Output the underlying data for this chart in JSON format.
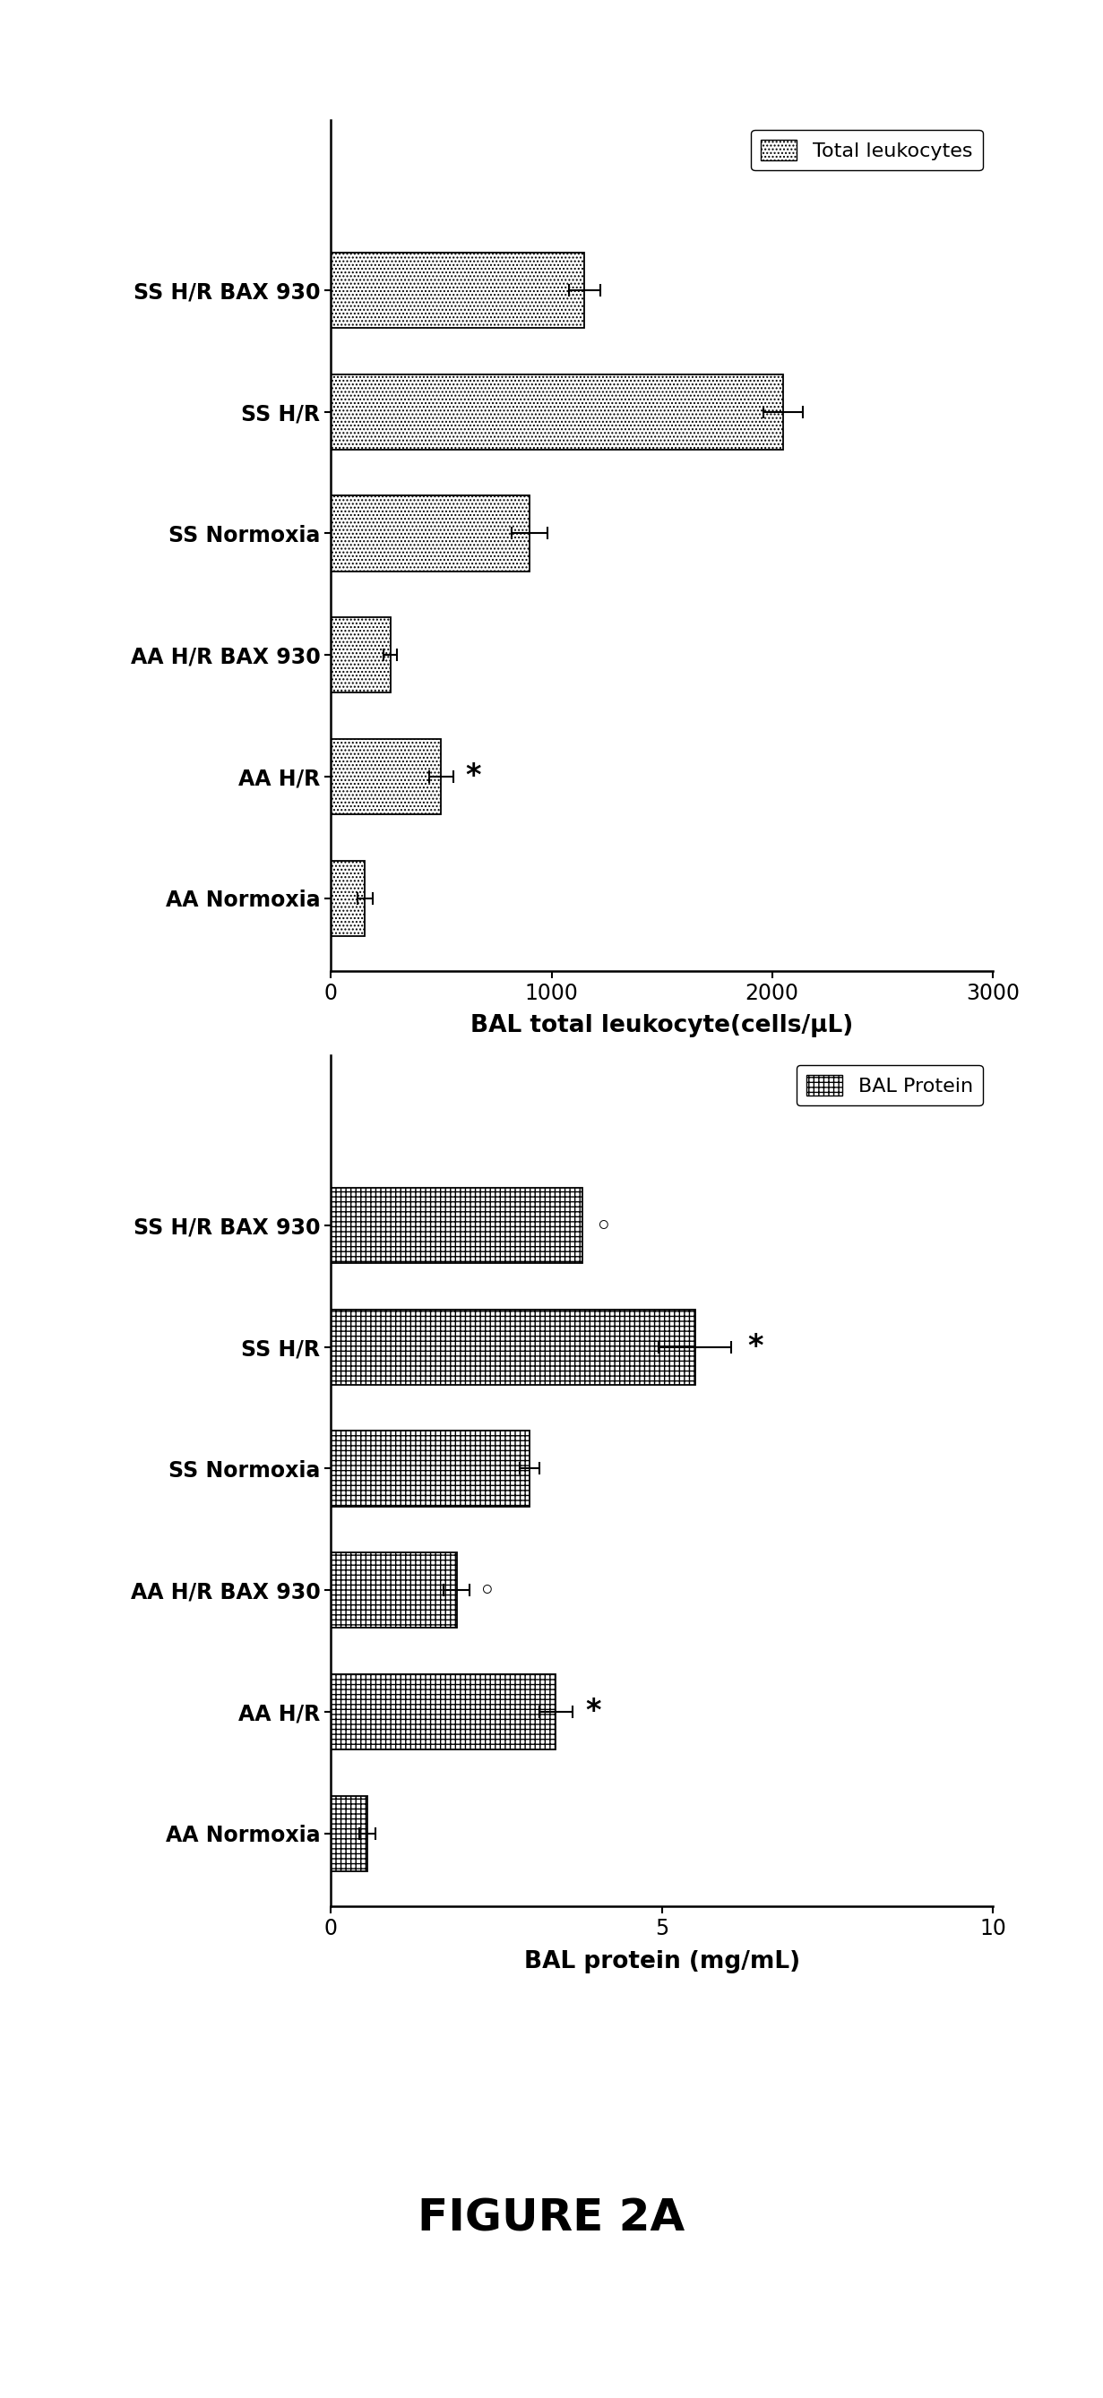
{
  "chart1": {
    "categories": [
      "SS H/R BAX 930",
      "SS H/R",
      "SS Normoxia",
      "AA H/R BAX 930",
      "AA H/R",
      "AA Normoxia"
    ],
    "values": [
      1150,
      2050,
      900,
      270,
      500,
      155
    ],
    "errors": [
      70,
      90,
      80,
      30,
      55,
      35
    ],
    "annotations": [
      null,
      null,
      null,
      null,
      "*",
      null
    ],
    "annotation_x": [
      null,
      null,
      null,
      null,
      610,
      null
    ],
    "annotation_y_offset": [
      null,
      null,
      null,
      null,
      0,
      null
    ],
    "xlabel": "BAL total leukocyte(cells/μL)",
    "legend_label": "Total leukocytes",
    "xlim": [
      0,
      3000
    ],
    "xticks": [
      0,
      1000,
      2000,
      3000
    ]
  },
  "chart2": {
    "categories": [
      "SS H/R BAX 930",
      "SS H/R",
      "SS Normoxia",
      "AA H/R BAX 930",
      "AA H/R",
      "AA Normoxia"
    ],
    "values": [
      3.8,
      5.5,
      3.0,
      1.9,
      3.4,
      0.55
    ],
    "errors": [
      0.0,
      0.55,
      0.15,
      0.2,
      0.25,
      0.12
    ],
    "annotations": [
      "◦",
      "*",
      null,
      "◦",
      "*",
      null
    ],
    "annotation_x": [
      4.0,
      6.3,
      null,
      2.25,
      3.85,
      null
    ],
    "annotation_y_offset": [
      0,
      0,
      null,
      0,
      0,
      null
    ],
    "xlabel": "BAL protein (mg/mL)",
    "legend_label": "BAL Protein",
    "xlim": [
      0,
      10
    ],
    "xticks": [
      0,
      5,
      10
    ]
  },
  "figure_title": "FIGURE 2A",
  "background_color": "#ffffff"
}
